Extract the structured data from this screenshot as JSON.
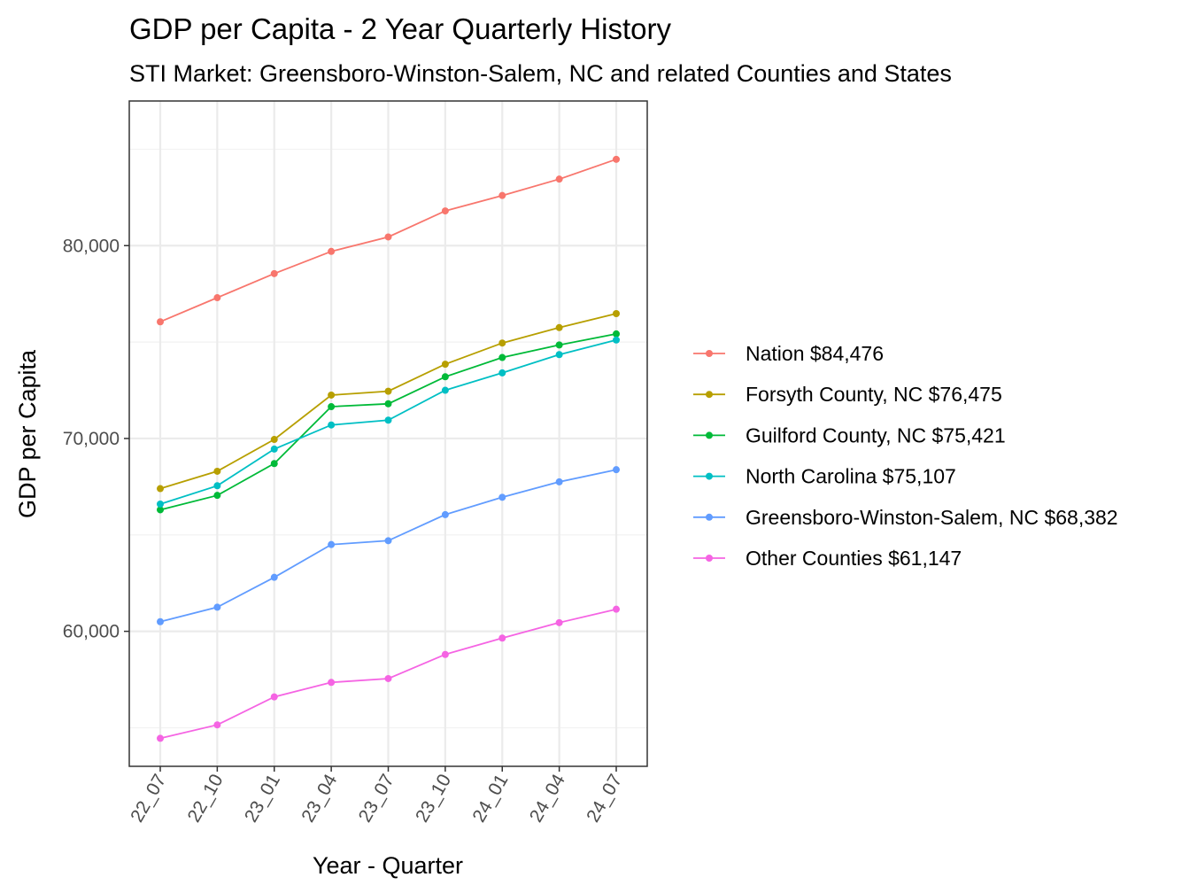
{
  "chart_data": {
    "type": "line",
    "title": "GDP per Capita - 2 Year Quarterly History",
    "subtitle": "STI Market: Greensboro-Winston-Salem, NC and related Counties and States",
    "xlabel": "Year - Quarter",
    "ylabel": "GDP per Capita",
    "categories": [
      "22_07",
      "22_10",
      "23_01",
      "23_04",
      "23_07",
      "23_10",
      "24_01",
      "24_04",
      "24_07"
    ],
    "ylim": [
      53000,
      87500
    ],
    "yticks": [
      60000,
      70000,
      80000
    ],
    "ytick_labels": [
      "60,000",
      "70,000",
      "80,000"
    ],
    "grid": true,
    "legend_position": "right",
    "series": [
      {
        "name": "Nation",
        "label": "Nation $84,476",
        "color": "#F8766D",
        "values": [
          76050,
          77300,
          78550,
          79700,
          80450,
          81800,
          82600,
          83450,
          84476
        ]
      },
      {
        "name": "Forsyth County, NC",
        "label": "Forsyth County, NC $76,475",
        "color": "#B79F00",
        "values": [
          67400,
          68300,
          69950,
          72250,
          72450,
          73850,
          74950,
          75750,
          76475
        ]
      },
      {
        "name": "Guilford County, NC",
        "label": "Guilford County, NC $75,421",
        "color": "#00BA38",
        "values": [
          66300,
          67050,
          68700,
          71650,
          71800,
          73200,
          74200,
          74850,
          75421
        ]
      },
      {
        "name": "North Carolina",
        "label": "North Carolina $75,107",
        "color": "#00BFC4",
        "values": [
          66600,
          67550,
          69450,
          70700,
          70950,
          72500,
          73400,
          74350,
          75107
        ]
      },
      {
        "name": "Greensboro-Winston-Salem, NC",
        "label": "Greensboro-Winston-Salem, NC $68,382",
        "color": "#619CFF",
        "values": [
          60500,
          61250,
          62800,
          64500,
          64700,
          66050,
          66950,
          67750,
          68382
        ]
      },
      {
        "name": "Other Counties",
        "label": "Other Counties $61,147",
        "color": "#F564E3",
        "values": [
          54450,
          55150,
          56600,
          57350,
          57550,
          58800,
          59650,
          60450,
          61147
        ]
      }
    ]
  }
}
